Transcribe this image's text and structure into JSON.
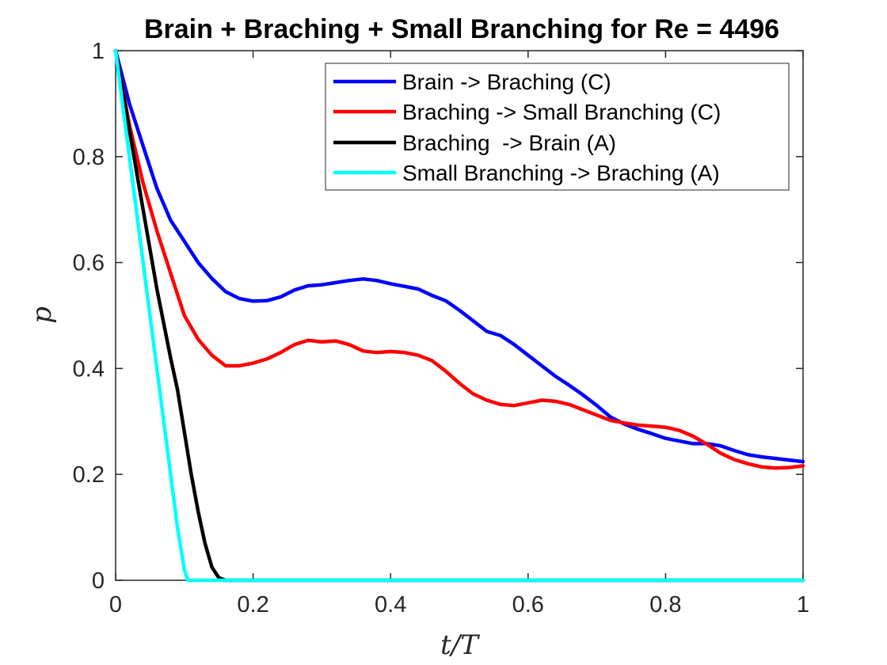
{
  "chart_data": {
    "type": "line",
    "title": "Brain + Braching + Small Branching for Re = 4496",
    "xlabel": "t/T",
    "ylabel": "p",
    "xlim": [
      0,
      1
    ],
    "ylim": [
      0,
      1
    ],
    "xticks": [
      0,
      0.2,
      0.4,
      0.6,
      0.8,
      1
    ],
    "yticks": [
      0,
      0.2,
      0.4,
      0.6,
      0.8,
      1
    ],
    "xtick_labels": [
      "0",
      "0.2",
      "0.4",
      "0.6",
      "0.8",
      "1"
    ],
    "ytick_labels": [
      "0",
      "0.2",
      "0.4",
      "0.6",
      "0.8",
      "1"
    ],
    "grid": false,
    "legend_position": "top-right",
    "series": [
      {
        "name": "Brain -> Braching (C)",
        "color": "#0000ff",
        "points": [
          [
            0,
            1.0
          ],
          [
            0.02,
            0.9
          ],
          [
            0.04,
            0.82
          ],
          [
            0.06,
            0.74
          ],
          [
            0.08,
            0.68
          ],
          [
            0.1,
            0.64
          ],
          [
            0.12,
            0.6
          ],
          [
            0.14,
            0.57
          ],
          [
            0.16,
            0.545
          ],
          [
            0.18,
            0.532
          ],
          [
            0.2,
            0.527
          ],
          [
            0.22,
            0.528
          ],
          [
            0.24,
            0.535
          ],
          [
            0.26,
            0.548
          ],
          [
            0.28,
            0.556
          ],
          [
            0.3,
            0.558
          ],
          [
            0.32,
            0.562
          ],
          [
            0.34,
            0.566
          ],
          [
            0.36,
            0.569
          ],
          [
            0.38,
            0.566
          ],
          [
            0.4,
            0.56
          ],
          [
            0.42,
            0.555
          ],
          [
            0.44,
            0.55
          ],
          [
            0.46,
            0.538
          ],
          [
            0.48,
            0.528
          ],
          [
            0.5,
            0.51
          ],
          [
            0.52,
            0.49
          ],
          [
            0.54,
            0.47
          ],
          [
            0.56,
            0.462
          ],
          [
            0.58,
            0.445
          ],
          [
            0.6,
            0.425
          ],
          [
            0.62,
            0.405
          ],
          [
            0.64,
            0.385
          ],
          [
            0.66,
            0.368
          ],
          [
            0.68,
            0.35
          ],
          [
            0.7,
            0.33
          ],
          [
            0.72,
            0.308
          ],
          [
            0.74,
            0.295
          ],
          [
            0.76,
            0.285
          ],
          [
            0.78,
            0.277
          ],
          [
            0.8,
            0.268
          ],
          [
            0.82,
            0.263
          ],
          [
            0.84,
            0.258
          ],
          [
            0.86,
            0.258
          ],
          [
            0.88,
            0.254
          ],
          [
            0.9,
            0.245
          ],
          [
            0.92,
            0.237
          ],
          [
            0.94,
            0.233
          ],
          [
            0.96,
            0.23
          ],
          [
            0.98,
            0.227
          ],
          [
            1.0,
            0.224
          ]
        ]
      },
      {
        "name": "Braching -> Small Branching (C)",
        "color": "#ff0000",
        "points": [
          [
            0,
            1.0
          ],
          [
            0.02,
            0.86
          ],
          [
            0.04,
            0.75
          ],
          [
            0.06,
            0.66
          ],
          [
            0.08,
            0.58
          ],
          [
            0.1,
            0.5
          ],
          [
            0.12,
            0.455
          ],
          [
            0.14,
            0.425
          ],
          [
            0.16,
            0.405
          ],
          [
            0.18,
            0.405
          ],
          [
            0.2,
            0.41
          ],
          [
            0.22,
            0.418
          ],
          [
            0.24,
            0.43
          ],
          [
            0.26,
            0.445
          ],
          [
            0.28,
            0.453
          ],
          [
            0.3,
            0.45
          ],
          [
            0.32,
            0.452
          ],
          [
            0.34,
            0.445
          ],
          [
            0.36,
            0.433
          ],
          [
            0.38,
            0.43
          ],
          [
            0.4,
            0.432
          ],
          [
            0.42,
            0.43
          ],
          [
            0.44,
            0.425
          ],
          [
            0.46,
            0.415
          ],
          [
            0.48,
            0.395
          ],
          [
            0.5,
            0.372
          ],
          [
            0.52,
            0.352
          ],
          [
            0.54,
            0.34
          ],
          [
            0.56,
            0.332
          ],
          [
            0.58,
            0.33
          ],
          [
            0.6,
            0.335
          ],
          [
            0.62,
            0.34
          ],
          [
            0.64,
            0.338
          ],
          [
            0.66,
            0.332
          ],
          [
            0.68,
            0.322
          ],
          [
            0.7,
            0.312
          ],
          [
            0.72,
            0.302
          ],
          [
            0.74,
            0.297
          ],
          [
            0.76,
            0.293
          ],
          [
            0.78,
            0.291
          ],
          [
            0.8,
            0.289
          ],
          [
            0.82,
            0.283
          ],
          [
            0.84,
            0.272
          ],
          [
            0.86,
            0.257
          ],
          [
            0.88,
            0.24
          ],
          [
            0.9,
            0.228
          ],
          [
            0.92,
            0.22
          ],
          [
            0.94,
            0.214
          ],
          [
            0.96,
            0.212
          ],
          [
            0.98,
            0.213
          ],
          [
            1.0,
            0.216
          ]
        ]
      },
      {
        "name": "Braching  -> Brain (A)",
        "color": "#000000",
        "points": [
          [
            0,
            1.0
          ],
          [
            0.02,
            0.85
          ],
          [
            0.04,
            0.7
          ],
          [
            0.06,
            0.55
          ],
          [
            0.08,
            0.42
          ],
          [
            0.09,
            0.36
          ],
          [
            0.1,
            0.28
          ],
          [
            0.11,
            0.2
          ],
          [
            0.12,
            0.13
          ],
          [
            0.13,
            0.07
          ],
          [
            0.14,
            0.025
          ],
          [
            0.15,
            0.005
          ],
          [
            0.16,
            0.0
          ],
          [
            0.2,
            0.0
          ],
          [
            0.4,
            0.0
          ],
          [
            0.6,
            0.0
          ],
          [
            0.8,
            0.0
          ],
          [
            1.0,
            0.0
          ]
        ]
      },
      {
        "name": "Small Branching -> Braching (A)",
        "color": "#00ffff",
        "points": [
          [
            0,
            1.0
          ],
          [
            0.02,
            0.8
          ],
          [
            0.04,
            0.6
          ],
          [
            0.06,
            0.4
          ],
          [
            0.08,
            0.2
          ],
          [
            0.09,
            0.1
          ],
          [
            0.1,
            0.02
          ],
          [
            0.105,
            0.0
          ],
          [
            0.2,
            0.0
          ],
          [
            0.4,
            0.0
          ],
          [
            0.6,
            0.0
          ],
          [
            0.8,
            0.0
          ],
          [
            1.0,
            0.0
          ]
        ]
      }
    ]
  }
}
